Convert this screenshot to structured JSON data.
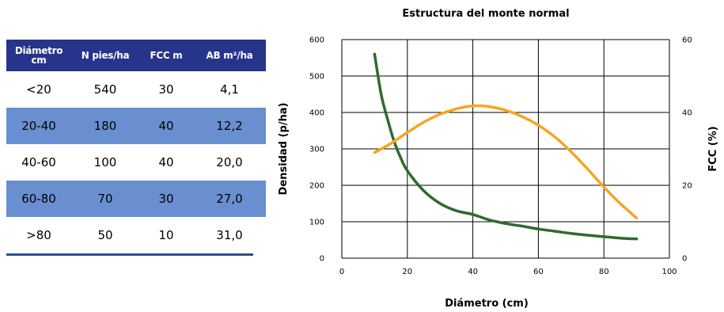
{
  "table": {
    "headers": [
      "Diámetro cm",
      "N pies/ha",
      "FCC m",
      "AB m²/ha"
    ],
    "rows": [
      [
        "<20",
        "540",
        "30",
        "4,1"
      ],
      [
        "20-40",
        "180",
        "40",
        "12,2"
      ],
      [
        "40-60",
        "100",
        "40",
        "20,0"
      ],
      [
        "60-80",
        "70",
        "30",
        "27,0"
      ],
      [
        ">80",
        "50",
        "10",
        "31,0"
      ]
    ]
  },
  "chart_data": {
    "type": "line",
    "title": "Estructura del monte normal",
    "xlabel": "Diámetro (cm)",
    "ylabel": "Densidad (p/ha)",
    "y2label": "FCC (%)",
    "xlim": [
      0,
      100
    ],
    "ylim": [
      0,
      600
    ],
    "y2lim": [
      0,
      60
    ],
    "xticks": [
      0,
      20,
      40,
      60,
      80,
      100
    ],
    "yticks": [
      0,
      100,
      200,
      300,
      400,
      500,
      600
    ],
    "y2ticks": [
      0,
      20,
      40,
      60
    ],
    "grid": true,
    "series": [
      {
        "axis": "left",
        "color": "#2e6b2e",
        "x": [
          10,
          12,
          14,
          16,
          18,
          20,
          25,
          30,
          35,
          40,
          45,
          50,
          55,
          60,
          65,
          70,
          75,
          80,
          85,
          90
        ],
        "y": [
          560,
          450,
          380,
          320,
          275,
          240,
          185,
          150,
          130,
          120,
          105,
          95,
          88,
          80,
          74,
          68,
          63,
          59,
          55,
          53
        ]
      },
      {
        "axis": "right",
        "color": "#f5a623",
        "x": [
          10,
          15,
          20,
          25,
          30,
          35,
          40,
          45,
          50,
          55,
          60,
          65,
          70,
          75,
          80,
          85,
          90
        ],
        "y": [
          29,
          31.5,
          34.5,
          37.3,
          39.5,
          41,
          41.8,
          41.6,
          40.6,
          38.9,
          36.5,
          33.3,
          29.2,
          24.5,
          19.5,
          15,
          11
        ]
      }
    ]
  }
}
